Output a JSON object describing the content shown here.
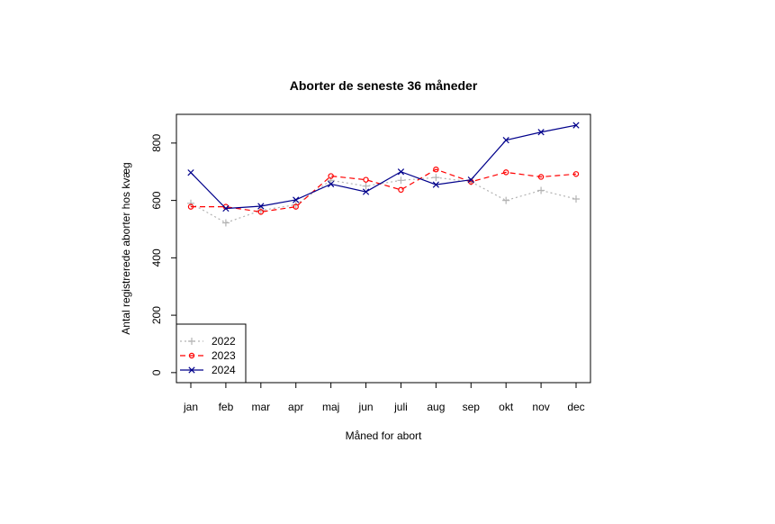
{
  "chart_data": {
    "type": "line",
    "title": "Aborter de seneste 36 måneder",
    "xlabel": "Måned for abort",
    "ylabel": "Antal registrerede aborter hos kvæg",
    "categories": [
      "jan",
      "feb",
      "mar",
      "apr",
      "maj",
      "jun",
      "juli",
      "aug",
      "sep",
      "okt",
      "nov",
      "dec"
    ],
    "ylim": [
      -35,
      900
    ],
    "yticks": [
      0,
      200,
      400,
      600,
      800
    ],
    "grid": false,
    "legend_position": "bottom-left",
    "series": [
      {
        "name": "2022",
        "color": "#b3b3b3",
        "line_style": "dotted",
        "marker": "plus",
        "values": [
          590,
          522,
          565,
          585,
          670,
          650,
          670,
          680,
          665,
          600,
          635,
          605
        ]
      },
      {
        "name": "2023",
        "color": "#ff0000",
        "line_style": "dashed",
        "marker": "circle",
        "values": [
          578,
          578,
          560,
          578,
          685,
          672,
          637,
          708,
          665,
          698,
          682,
          692
        ]
      },
      {
        "name": "2024",
        "color": "#00008b",
        "line_style": "solid",
        "marker": "cross",
        "values": [
          697,
          572,
          580,
          602,
          657,
          630,
          700,
          655,
          672,
          810,
          838,
          862
        ]
      }
    ]
  }
}
